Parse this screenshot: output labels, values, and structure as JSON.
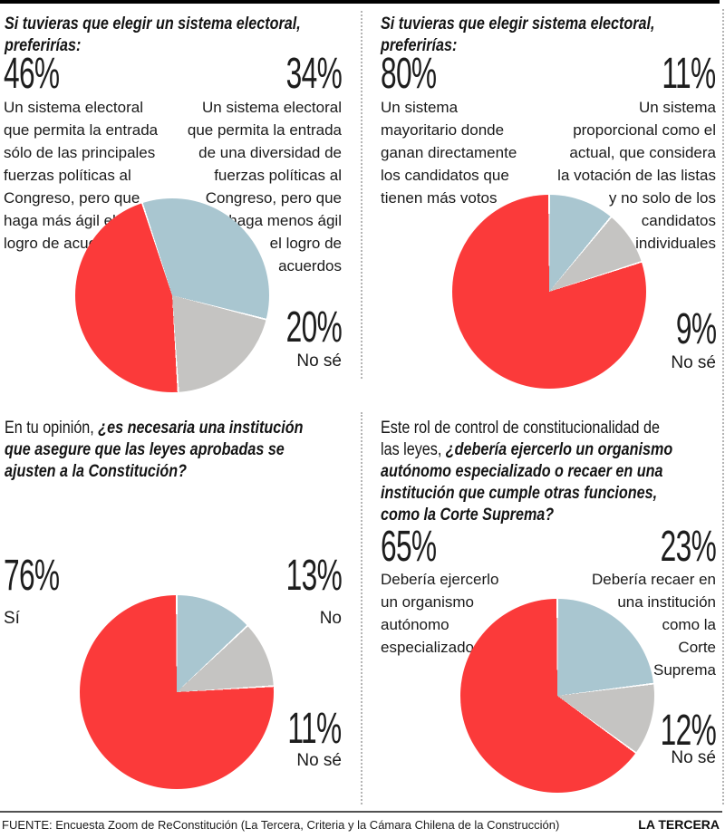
{
  "page": {
    "source": "FUENTE: Encuesta Zoom de ReConstitución (La Tercera, Criteria y la Cámara Chilena de la Construcción)",
    "brand": "LA TERCERA"
  },
  "colors": {
    "red": "#FB3A3A",
    "blue": "#A9C6D0",
    "gray": "#C5C4C2",
    "separator": "#FFFFFF"
  },
  "chart_data": [
    {
      "type": "pie",
      "question": {
        "prefix": "",
        "emphasis": "Si tuvieras que elegir un sistema electoral,\npreferirías:"
      },
      "answers": {
        "left": {
          "pct": "46%",
          "value": 46,
          "color": "#FB3A3A",
          "label": "Un sistema electoral\nque permita la entrada\nsólo de las principales\nfuerzas políticas al\nCongreso, pero que\nhaga más ágil el\nlogro de acuerdos"
        },
        "right": {
          "pct": "34%",
          "value": 34,
          "color": "#A9C6D0",
          "label": "Un sistema electoral\nque permita la entrada\nde una diversidad de\nfuerzas políticas al\nCongreso, pero que\nhaga menos ágil\nel logro de\nacuerdos"
        },
        "dontknow": {
          "pct": "20%",
          "value": 20,
          "color": "#C5C4C2",
          "label": "No sé"
        }
      },
      "pie": {
        "start_angle": -18,
        "order": [
          "right",
          "dontknow",
          "left"
        ]
      }
    },
    {
      "type": "pie",
      "question": {
        "prefix": "",
        "emphasis": "Si tuvieras que elegir sistema electoral,\npreferirías:"
      },
      "answers": {
        "left": {
          "pct": "80%",
          "value": 80,
          "color": "#FB3A3A",
          "label": "Un sistema\nmayoritario donde\nganan directamente\nlos candidatos que\ntienen más votos"
        },
        "right": {
          "pct": "11%",
          "value": 11,
          "color": "#A9C6D0",
          "label": "Un sistema\nproporcional como el\nactual, que considera\nla votación de las listas\ny no solo de los\ncandidatos\nindividuales"
        },
        "dontknow": {
          "pct": "9%",
          "value": 9,
          "color": "#C5C4C2",
          "label": "No sé"
        }
      },
      "pie": {
        "start_angle": 0,
        "order": [
          "right",
          "dontknow",
          "left"
        ]
      }
    },
    {
      "type": "pie",
      "question": {
        "prefix": "En tu opinión, ",
        "emphasis": "¿es necesaria una institución\nque asegure que las leyes aprobadas se\najusten a la Constitución?"
      },
      "answers": {
        "left": {
          "pct": "76%",
          "value": 76,
          "color": "#FB3A3A",
          "label": "Sí"
        },
        "right": {
          "pct": "13%",
          "value": 13,
          "color": "#A9C6D0",
          "label": "No"
        },
        "dontknow": {
          "pct": "11%",
          "value": 11,
          "color": "#C5C4C2",
          "label": "No sé"
        }
      },
      "pie": {
        "start_angle": 0,
        "order": [
          "right",
          "dontknow",
          "left"
        ]
      }
    },
    {
      "type": "pie",
      "question": {
        "prefix": "Este rol de control de constitucionalidad de\nlas leyes, ",
        "emphasis": "¿debería ejercerlo un organismo\nautónomo especializado o recaer en una\ninstitución que cumple otras funciones,\ncomo la Corte Suprema?"
      },
      "answers": {
        "left": {
          "pct": "65%",
          "value": 65,
          "color": "#FB3A3A",
          "label": "Debería ejercerlo\nun organismo\nautónomo\nespecializado"
        },
        "right": {
          "pct": "23%",
          "value": 23,
          "color": "#A9C6D0",
          "label": "Debería recaer en\nuna institución\ncomo la\nCorte\nSuprema"
        },
        "dontknow": {
          "pct": "12%",
          "value": 12,
          "color": "#C5C4C2",
          "label": "No sé"
        }
      },
      "pie": {
        "start_angle": 0,
        "order": [
          "right",
          "dontknow",
          "left"
        ]
      }
    }
  ]
}
